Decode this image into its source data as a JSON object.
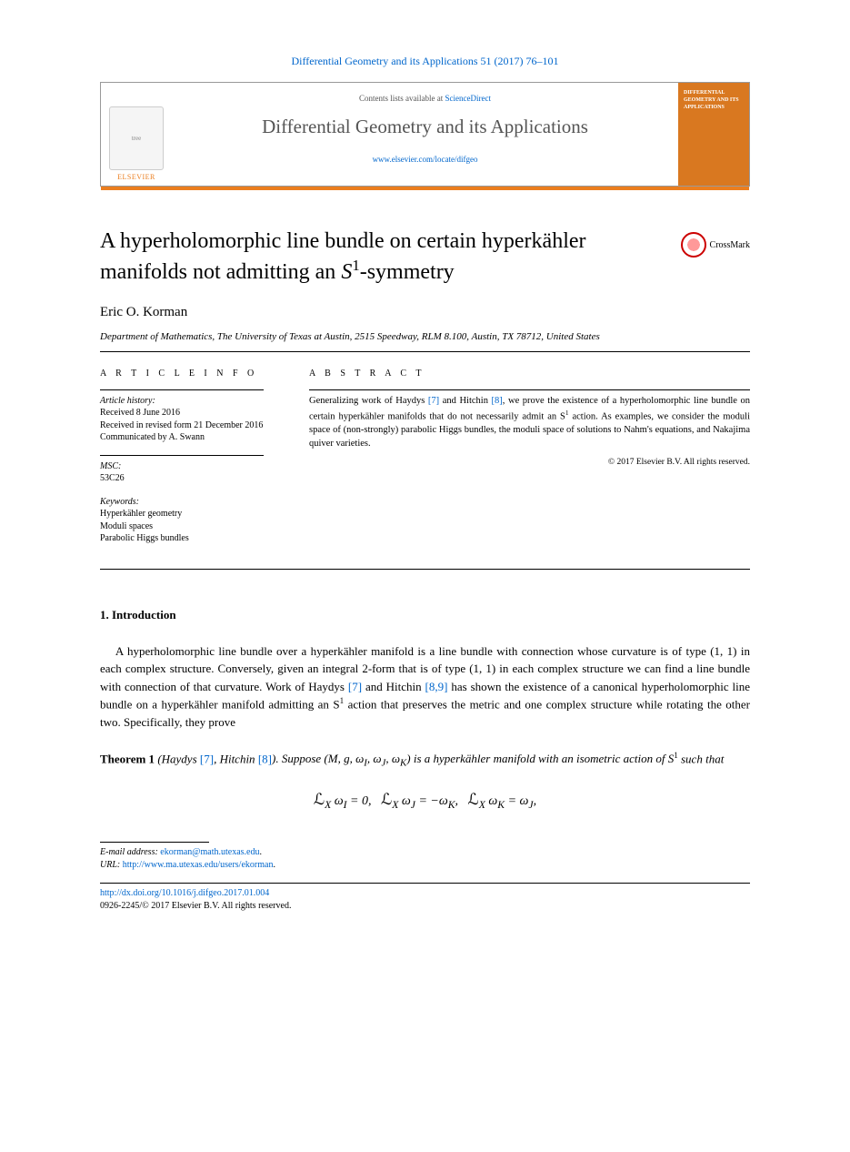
{
  "citation": {
    "text": "Differential Geometry and its Applications 51 (2017) 76–101",
    "color": "#0066cc"
  },
  "header": {
    "contents_prefix": "Contents lists available at ",
    "contents_link": "ScienceDirect",
    "journal": "Differential Geometry and its Applications",
    "url": "www.elsevier.com/locate/difgeo",
    "publisher": "ELSEVIER",
    "cover_title": "DIFFERENTIAL GEOMETRY AND ITS APPLICATIONS",
    "accent_color": "#eb7e1f",
    "cover_bg": "#d97820"
  },
  "crossmark": {
    "label": "CrossMark"
  },
  "paper": {
    "title_a": "A hyperholomorphic line bundle on certain hyperkähler",
    "title_b": "manifolds not admitting an ",
    "title_sup": "1",
    "title_sym": "S",
    "title_c": "-symmetry",
    "author": "Eric O. Korman",
    "affil": "Department of Mathematics, The University of Texas at Austin, 2515 Speedway, RLM 8.100, Austin, TX 78712, United States"
  },
  "info": {
    "heading": "A R T I C L E   I N F O",
    "history_label": "Article history:",
    "h1": "Received 8 June 2016",
    "h2": "Received in revised form 21 December 2016",
    "h3": "Communicated by A. Swann",
    "msc_label": "MSC:",
    "msc": "53C26",
    "kw_label": "Keywords:",
    "kw1": "Hyperkähler geometry",
    "kw2": "Moduli spaces",
    "kw3": "Parabolic Higgs bundles"
  },
  "abstract": {
    "heading": "A B S T R A C T",
    "text_a": "Generalizing work of Haydys ",
    "ref7": "[7]",
    "text_b": " and Hitchin ",
    "ref8": "[8]",
    "text_c": ", we prove the existence of a hyperholomorphic line bundle on certain hyperkähler manifolds that do not necessarily admit an S",
    "sup1": "1",
    "text_d": " action. As examples, we consider the moduli space of (non-strongly) parabolic Higgs bundles, the moduli space of solutions to Nahm's equations, and Nakajima quiver varieties.",
    "copyright": "© 2017 Elsevier B.V. All rights reserved."
  },
  "section1": {
    "title": "1. Introduction"
  },
  "intro": {
    "p1a": "A hyperholomorphic line bundle over a hyperkähler manifold is a line bundle with connection whose curvature is of type (1, 1) in each complex structure. Conversely, given an integral 2-form that is of type (1, 1) in each complex structure we can find a line bundle with connection of that curvature. Work of Haydys ",
    "r7": "[7]",
    "p1b": " and Hitchin ",
    "r89": "[8,9]",
    "p1c": " has shown the existence of a canonical hyperholomorphic line bundle on a hyperkähler manifold admitting an S",
    "sup1": "1",
    "p1d": " action that preserves the metric and one complex structure while rotating the other two. Specifically, they prove"
  },
  "theorem": {
    "label": "Theorem 1",
    "cite_a": " (Haydys ",
    "r7": "[7]",
    "cite_b": ", Hitchin ",
    "r8": "[8]",
    "cite_c": "). ",
    "stmt_a": "Suppose (M, g, ω",
    "sI": "I",
    "stmt_b": ", ω",
    "sJ": "J",
    "stmt_c": ", ω",
    "sK": "K",
    "stmt_d": ") is a hyperkähler manifold with an isometric action of S",
    "sup1": "1",
    "stmt_e": " such that"
  },
  "equation": {
    "text": "ℒ_X ω_I = 0,   ℒ_X ω_J = −ω_K,   ℒ_X ω_K = ω_J,"
  },
  "footer": {
    "email_label": "E-mail address: ",
    "email": "ekorman@math.utexas.edu",
    "url_label": "URL: ",
    "url": "http://www.ma.utexas.edu/users/ekorman",
    "doi": "http://dx.doi.org/10.1016/j.difgeo.2017.01.004",
    "issn_line": "0926-2245/© 2017 Elsevier B.V. All rights reserved."
  }
}
